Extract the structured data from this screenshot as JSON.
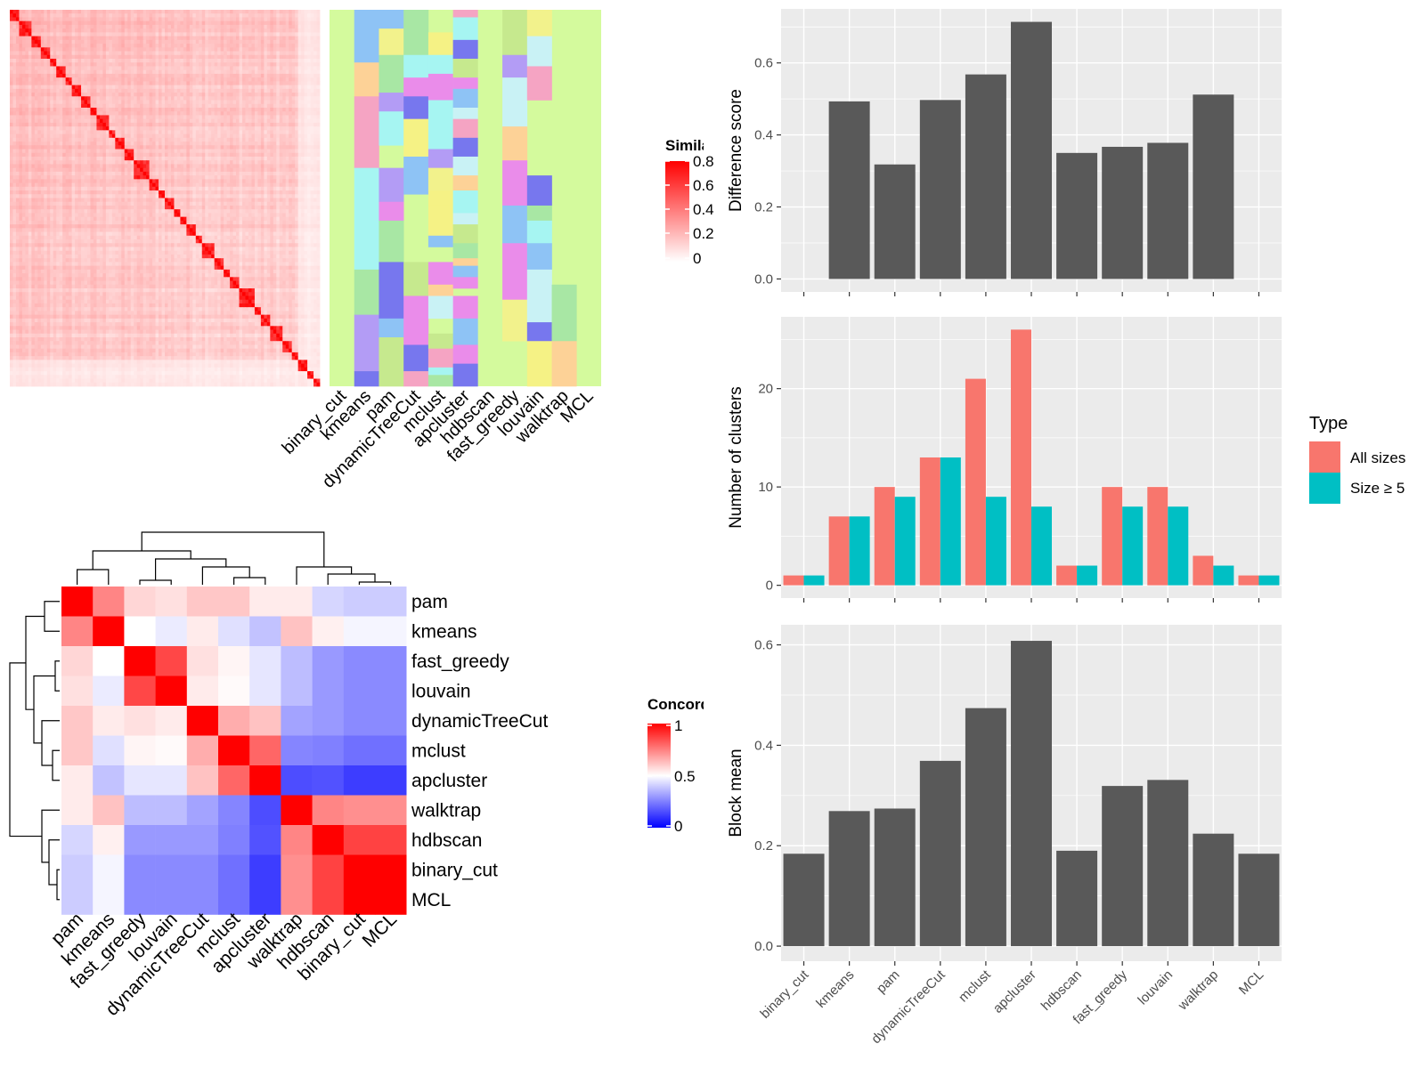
{
  "colors": {
    "panel_bg": "#ebebeb",
    "grid": "#ffffff",
    "bar_gray": "#595959",
    "all_sizes": "#f8766d",
    "size_ge5": "#00bfc4",
    "sim_high": "#ff0000",
    "sim_low": "#ffffff",
    "conc_high": "#ff0000",
    "conc_mid": "#ffffff",
    "conc_low": "#0000ff",
    "class_bg": "#d4fa9d"
  },
  "similarity_heatmap": {
    "legend_title": "Similarity",
    "legend_ticks": [
      "0.8",
      "0.6",
      "0.4",
      "0.2",
      "0"
    ],
    "n_terms": 100
  },
  "class_heatmap": {
    "columns": [
      "binary_cut",
      "kmeans",
      "pam",
      "dynamicTreeCut",
      "mclust",
      "apcluster",
      "hdbscan",
      "fast_greedy",
      "louvain",
      "walktrap",
      "MCL"
    ],
    "cluster_palette": [
      "#d4fa9d",
      "#a6f5f2",
      "#f5f285",
      "#ea8cea",
      "#f5a4c3",
      "#8ec3f5",
      "#a8e7a4",
      "#c6e98e",
      "#fdd297",
      "#b39cf5",
      "#7777ee",
      "#f2f28c",
      "#c9f2f5"
    ]
  },
  "concordance_heatmap": {
    "legend_title": "Concordance",
    "legend_ticks": [
      "1",
      "0.5",
      "0"
    ],
    "row_labels": [
      "pam",
      "kmeans",
      "fast_greedy",
      "louvain",
      "dynamicTreeCut",
      "mclust",
      "apcluster",
      "walktrap",
      "hdbscan",
      "binary_cut",
      "MCL"
    ],
    "col_labels": [
      "pam",
      "kmeans",
      "fast_greedy",
      "louvain",
      "dynamicTreeCut",
      "mclust",
      "apcluster",
      "walktrap",
      "hdbscan",
      "binary_cut",
      "MCL"
    ],
    "matrix": [
      [
        1.0,
        0.74,
        0.58,
        0.56,
        0.61,
        0.61,
        0.54,
        0.54,
        0.42,
        0.4,
        0.4
      ],
      [
        0.74,
        1.0,
        0.5,
        0.46,
        0.54,
        0.44,
        0.38,
        0.62,
        0.53,
        0.48,
        0.48
      ],
      [
        0.58,
        0.5,
        1.0,
        0.86,
        0.56,
        0.52,
        0.45,
        0.37,
        0.3,
        0.27,
        0.27
      ],
      [
        0.56,
        0.46,
        0.86,
        1.0,
        0.54,
        0.51,
        0.45,
        0.37,
        0.3,
        0.27,
        0.27
      ],
      [
        0.61,
        0.54,
        0.56,
        0.54,
        1.0,
        0.66,
        0.62,
        0.32,
        0.3,
        0.27,
        0.27
      ],
      [
        0.61,
        0.44,
        0.52,
        0.51,
        0.66,
        1.0,
        0.8,
        0.26,
        0.25,
        0.22,
        0.22
      ],
      [
        0.54,
        0.38,
        0.45,
        0.45,
        0.62,
        0.8,
        1.0,
        0.15,
        0.16,
        0.12,
        0.12
      ],
      [
        0.54,
        0.62,
        0.37,
        0.37,
        0.32,
        0.26,
        0.15,
        1.0,
        0.74,
        0.72,
        0.72
      ],
      [
        0.42,
        0.53,
        0.3,
        0.3,
        0.3,
        0.25,
        0.16,
        0.74,
        1.0,
        0.87,
        0.87
      ],
      [
        0.4,
        0.48,
        0.27,
        0.27,
        0.27,
        0.22,
        0.12,
        0.72,
        0.87,
        1.0,
        1.0
      ],
      [
        0.4,
        0.48,
        0.27,
        0.27,
        0.27,
        0.22,
        0.12,
        0.72,
        0.87,
        1.0,
        1.0
      ]
    ]
  },
  "chart_data": [
    {
      "type": "bar",
      "categories": [
        "binary_cut",
        "kmeans",
        "pam",
        "dynamicTreeCut",
        "mclust",
        "apcluster",
        "hdbscan",
        "fast_greedy",
        "louvain",
        "walktrap",
        "MCL"
      ],
      "values": [
        0,
        0.493,
        0.318,
        0.497,
        0.568,
        0.714,
        0.35,
        0.367,
        0.378,
        0.512,
        0
      ],
      "ylabel": "Difference score",
      "yticks": [
        0.0,
        0.2,
        0.4,
        0.6
      ],
      "yticklabels": [
        "0.0",
        "0.2",
        "0.4",
        "0.6"
      ],
      "ylim": [
        -0.036,
        0.75
      ],
      "grid": true
    },
    {
      "type": "bar",
      "categories": [
        "binary_cut",
        "kmeans",
        "pam",
        "dynamicTreeCut",
        "mclust",
        "apcluster",
        "hdbscan",
        "fast_greedy",
        "louvain",
        "walktrap",
        "MCL"
      ],
      "series": [
        {
          "name": "All sizes",
          "values": [
            1,
            7,
            10,
            13,
            21,
            26,
            2,
            10,
            10,
            3,
            1
          ]
        },
        {
          "name": "Size ≥ 5",
          "values": [
            1,
            7,
            9,
            13,
            9,
            8,
            2,
            8,
            8,
            2,
            1
          ]
        }
      ],
      "ylabel": "Number of clusters",
      "yticks": [
        0,
        10,
        20
      ],
      "yticklabels": [
        "0",
        "10",
        "20"
      ],
      "ylim": [
        -1.3,
        27.3
      ],
      "legend_title": "Type",
      "legend_position": "right",
      "grid": true
    },
    {
      "type": "bar",
      "categories": [
        "binary_cut",
        "kmeans",
        "pam",
        "dynamicTreeCut",
        "mclust",
        "apcluster",
        "hdbscan",
        "fast_greedy",
        "louvain",
        "walktrap",
        "MCL"
      ],
      "values": [
        0.184,
        0.269,
        0.274,
        0.369,
        0.474,
        0.608,
        0.19,
        0.319,
        0.331,
        0.224,
        0.184
      ],
      "ylabel": "Block mean",
      "yticks": [
        0.0,
        0.2,
        0.4,
        0.6
      ],
      "yticklabels": [
        "0.0",
        "0.2",
        "0.4",
        "0.6"
      ],
      "ylim": [
        -0.03,
        0.64
      ],
      "grid": true
    }
  ]
}
